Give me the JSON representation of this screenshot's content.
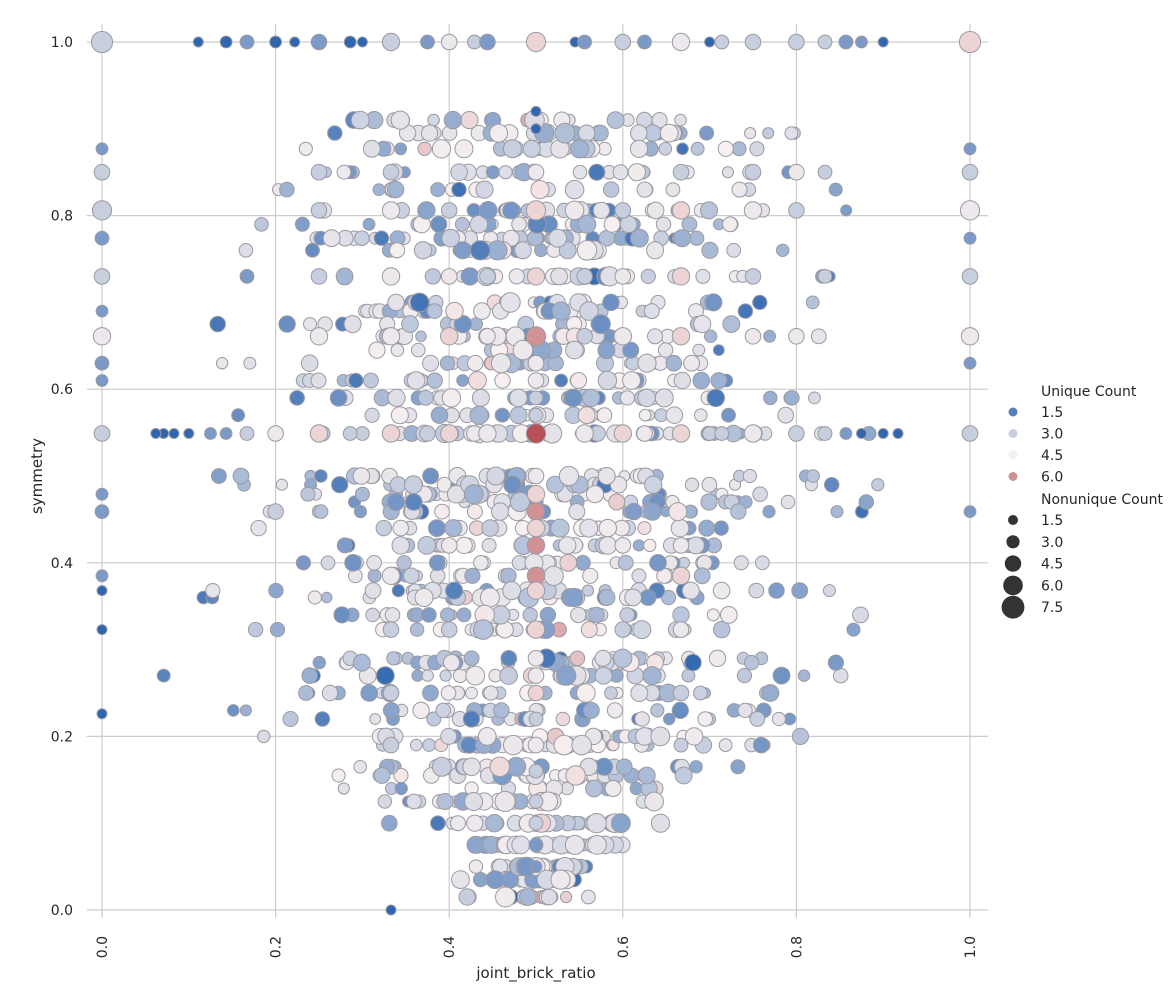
{
  "chart_data": {
    "type": "scatter",
    "xlabel": "joint_brick_ratio",
    "ylabel": "symmetry",
    "xlim": [
      0.0,
      1.0
    ],
    "ylim": [
      0.0,
      1.0
    ],
    "x_ticks": [
      0.0,
      0.2,
      0.4,
      0.6,
      0.8,
      1.0
    ],
    "x_tick_labels": [
      "0.0",
      "0.2",
      "0.4",
      "0.6",
      "0.8",
      "1.0"
    ],
    "y_ticks": [
      0.0,
      0.2,
      0.4,
      0.6,
      0.8,
      1.0
    ],
    "y_tick_labels": [
      "0.0",
      "0.2",
      "0.4",
      "0.6",
      "0.8",
      "1.0"
    ],
    "grid": true,
    "legend_position": "right",
    "hue": {
      "title": "Unique Count",
      "entries": [
        {
          "label": "1.5",
          "value": 1.5
        },
        {
          "label": "3.0",
          "value": 3.0
        },
        {
          "label": "4.5",
          "value": 4.5
        },
        {
          "label": "6.0",
          "value": 6.0
        }
      ],
      "palette": {
        "low": "#2f66b0",
        "mid": "#dcdde6",
        "high": "#a83038"
      },
      "range": [
        1,
        7.5
      ]
    },
    "size": {
      "title": "Nonunique Count",
      "entries": [
        {
          "label": "1.5",
          "value": 1.5
        },
        {
          "label": "3.0",
          "value": 3.0
        },
        {
          "label": "4.5",
          "value": 4.5
        },
        {
          "label": "6.0",
          "value": 6.0
        },
        {
          "label": "7.5",
          "value": 7.5
        }
      ],
      "range": [
        1,
        8
      ]
    },
    "points": [
      [
        0.0,
        1.0,
        3,
        7
      ],
      [
        0.111,
        1.0,
        1,
        1
      ],
      [
        0.143,
        1.0,
        1,
        2
      ],
      [
        0.167,
        1.0,
        2,
        3
      ],
      [
        0.2,
        1.0,
        1,
        2
      ],
      [
        0.222,
        1.0,
        1,
        1
      ],
      [
        0.25,
        1.0,
        2,
        4
      ],
      [
        0.286,
        1.0,
        1,
        2
      ],
      [
        0.3,
        1.0,
        1,
        1
      ],
      [
        0.333,
        1.0,
        3,
        5
      ],
      [
        0.375,
        1.0,
        2,
        3
      ],
      [
        0.4,
        1.0,
        4,
        4
      ],
      [
        0.429,
        1.0,
        3,
        3
      ],
      [
        0.444,
        1.0,
        2,
        4
      ],
      [
        0.5,
        1.0,
        5,
        6
      ],
      [
        0.545,
        1.0,
        1,
        1
      ],
      [
        0.556,
        1.0,
        2,
        3
      ],
      [
        0.6,
        1.0,
        3,
        4
      ],
      [
        0.625,
        1.0,
        2,
        3
      ],
      [
        0.667,
        1.0,
        4,
        5
      ],
      [
        0.7,
        1.0,
        1,
        1
      ],
      [
        0.714,
        1.0,
        3,
        3
      ],
      [
        0.75,
        1.0,
        3,
        4
      ],
      [
        0.8,
        1.0,
        3,
        4
      ],
      [
        0.833,
        1.0,
        3,
        3
      ],
      [
        0.857,
        1.0,
        2,
        3
      ],
      [
        0.875,
        1.0,
        2,
        2
      ],
      [
        0.9,
        1.0,
        1,
        1
      ],
      [
        1.0,
        1.0,
        5,
        7
      ],
      [
        0.0,
        0.877,
        2,
        2
      ],
      [
        0.0,
        0.85,
        3,
        4
      ],
      [
        0.0,
        0.806,
        3,
        6
      ],
      [
        0.0,
        0.774,
        2,
        3
      ],
      [
        0.0,
        0.73,
        3,
        4
      ],
      [
        0.0,
        0.69,
        2,
        2
      ],
      [
        0.0,
        0.661,
        4,
        5
      ],
      [
        0.0,
        0.63,
        2,
        3
      ],
      [
        0.0,
        0.61,
        2,
        2
      ],
      [
        0.0,
        0.549,
        3,
        4
      ],
      [
        0.0,
        0.479,
        2,
        2
      ],
      [
        0.0,
        0.459,
        2,
        3
      ],
      [
        0.0,
        0.385,
        2,
        2
      ],
      [
        0.0,
        0.368,
        1,
        1
      ],
      [
        0.0,
        0.323,
        1,
        1
      ],
      [
        0.0,
        0.226,
        1,
        1
      ],
      [
        1.0,
        0.877,
        2,
        2
      ],
      [
        1.0,
        0.85,
        3,
        4
      ],
      [
        1.0,
        0.806,
        4,
        6
      ],
      [
        1.0,
        0.774,
        2,
        2
      ],
      [
        1.0,
        0.73,
        3,
        4
      ],
      [
        1.0,
        0.661,
        4,
        5
      ],
      [
        1.0,
        0.63,
        2,
        2
      ],
      [
        1.0,
        0.549,
        3,
        4
      ],
      [
        1.0,
        0.459,
        2,
        2
      ],
      [
        0.5,
        0.549,
        7,
        6
      ],
      [
        0.5,
        0.661,
        6,
        6
      ],
      [
        0.5,
        0.73,
        5,
        5
      ],
      [
        0.5,
        0.806,
        5,
        6
      ],
      [
        0.5,
        0.85,
        4,
        4
      ],
      [
        0.5,
        0.459,
        6,
        5
      ],
      [
        0.5,
        0.42,
        6,
        5
      ],
      [
        0.5,
        0.385,
        6,
        5
      ],
      [
        0.5,
        0.368,
        5,
        5
      ],
      [
        0.5,
        0.323,
        5,
        5
      ],
      [
        0.5,
        0.25,
        5,
        4
      ],
      [
        0.5,
        0.19,
        4,
        4
      ],
      [
        0.5,
        0.27,
        4,
        4
      ],
      [
        0.5,
        0.29,
        4,
        4
      ],
      [
        0.5,
        0.44,
        5,
        5
      ],
      [
        0.5,
        0.479,
        5,
        5
      ],
      [
        0.5,
        0.5,
        4,
        4
      ],
      [
        0.5,
        0.61,
        4,
        4
      ],
      [
        0.5,
        0.63,
        4,
        4
      ],
      [
        0.5,
        0.57,
        3,
        3
      ],
      [
        0.5,
        0.59,
        3,
        3
      ],
      [
        0.5,
        0.22,
        3,
        3
      ],
      [
        0.5,
        0.16,
        3,
        3
      ],
      [
        0.5,
        0.125,
        3,
        3
      ],
      [
        0.5,
        0.1,
        3,
        3
      ],
      [
        0.5,
        0.075,
        2,
        3
      ],
      [
        0.5,
        0.05,
        2,
        2
      ],
      [
        0.5,
        0.9,
        1,
        1
      ],
      [
        0.5,
        0.92,
        1,
        1
      ],
      [
        0.333,
        0.549,
        5,
        5
      ],
      [
        0.333,
        0.661,
        4,
        5
      ],
      [
        0.333,
        0.73,
        4,
        5
      ],
      [
        0.333,
        0.806,
        4,
        5
      ],
      [
        0.333,
        0.85,
        3,
        4
      ],
      [
        0.333,
        0.385,
        4,
        5
      ],
      [
        0.333,
        0.323,
        3,
        4
      ],
      [
        0.333,
        0.25,
        3,
        4
      ],
      [
        0.333,
        0.19,
        3,
        4
      ],
      [
        0.333,
        0.0,
        1,
        1
      ],
      [
        0.667,
        0.549,
        5,
        5
      ],
      [
        0.667,
        0.661,
        5,
        5
      ],
      [
        0.667,
        0.73,
        5,
        5
      ],
      [
        0.667,
        0.806,
        5,
        5
      ],
      [
        0.667,
        0.85,
        3,
        4
      ],
      [
        0.667,
        0.42,
        4,
        4
      ],
      [
        0.667,
        0.385,
        5,
        5
      ],
      [
        0.667,
        0.323,
        4,
        4
      ],
      [
        0.667,
        0.25,
        3,
        4
      ],
      [
        0.667,
        0.19,
        3,
        3
      ],
      [
        0.4,
        0.549,
        5,
        5
      ],
      [
        0.4,
        0.661,
        5,
        5
      ],
      [
        0.4,
        0.73,
        4,
        4
      ],
      [
        0.4,
        0.806,
        3,
        4
      ],
      [
        0.4,
        0.42,
        4,
        4
      ],
      [
        0.4,
        0.323,
        3,
        4
      ],
      [
        0.6,
        0.549,
        5,
        5
      ],
      [
        0.6,
        0.661,
        4,
        5
      ],
      [
        0.6,
        0.73,
        4,
        4
      ],
      [
        0.6,
        0.806,
        3,
        4
      ],
      [
        0.6,
        0.42,
        4,
        4
      ],
      [
        0.6,
        0.323,
        3,
        4
      ],
      [
        0.25,
        0.549,
        5,
        5
      ],
      [
        0.25,
        0.661,
        4,
        5
      ],
      [
        0.25,
        0.73,
        3,
        4
      ],
      [
        0.25,
        0.806,
        3,
        4
      ],
      [
        0.25,
        0.85,
        3,
        4
      ],
      [
        0.75,
        0.549,
        4,
        5
      ],
      [
        0.75,
        0.661,
        4,
        4
      ],
      [
        0.75,
        0.73,
        3,
        4
      ],
      [
        0.75,
        0.806,
        4,
        5
      ],
      [
        0.75,
        0.85,
        3,
        4
      ],
      [
        0.2,
        0.549,
        4,
        4
      ],
      [
        0.2,
        0.459,
        3,
        4
      ],
      [
        0.8,
        0.549,
        3,
        4
      ],
      [
        0.8,
        0.661,
        4,
        4
      ],
      [
        0.8,
        0.85,
        4,
        4
      ],
      [
        0.8,
        0.806,
        3,
        4
      ],
      [
        0.167,
        0.549,
        3,
        3
      ],
      [
        0.167,
        0.73,
        2,
        3
      ],
      [
        0.833,
        0.549,
        3,
        3
      ],
      [
        0.833,
        0.73,
        3,
        3
      ],
      [
        0.833,
        0.85,
        3,
        3
      ],
      [
        0.444,
        0.549,
        4,
        5
      ],
      [
        0.444,
        0.661,
        4,
        4
      ],
      [
        0.444,
        0.73,
        3,
        4
      ],
      [
        0.556,
        0.549,
        4,
        5
      ],
      [
        0.556,
        0.661,
        3,
        4
      ],
      [
        0.556,
        0.73,
        3,
        4
      ],
      [
        0.429,
        0.549,
        4,
        4
      ],
      [
        0.571,
        0.549,
        3,
        4
      ],
      [
        0.375,
        0.549,
        3,
        4
      ],
      [
        0.625,
        0.549,
        4,
        4
      ],
      [
        0.3,
        0.549,
        3,
        3
      ],
      [
        0.7,
        0.549,
        3,
        3
      ],
      [
        0.286,
        0.549,
        3,
        3
      ],
      [
        0.714,
        0.549,
        3,
        3
      ],
      [
        0.143,
        0.549,
        2,
        2
      ],
      [
        0.857,
        0.549,
        2,
        2
      ],
      [
        0.125,
        0.549,
        2,
        2
      ],
      [
        0.875,
        0.549,
        1,
        1
      ],
      [
        0.1,
        0.549,
        1,
        1
      ],
      [
        0.9,
        0.549,
        1,
        1
      ],
      [
        0.083,
        0.549,
        1,
        1
      ],
      [
        0.917,
        0.549,
        1,
        1
      ],
      [
        0.071,
        0.549,
        1,
        1
      ],
      [
        0.062,
        0.549,
        1,
        1
      ]
    ],
    "cloud": {
      "seed": 7,
      "count": 1500,
      "y_rows": [
        0.015,
        0.035,
        0.05,
        0.075,
        0.1,
        0.125,
        0.14,
        0.155,
        0.165,
        0.19,
        0.2,
        0.22,
        0.23,
        0.25,
        0.27,
        0.285,
        0.29,
        0.323,
        0.34,
        0.36,
        0.368,
        0.385,
        0.4,
        0.42,
        0.44,
        0.459,
        0.47,
        0.479,
        0.49,
        0.5,
        0.549,
        0.57,
        0.59,
        0.61,
        0.63,
        0.645,
        0.661,
        0.675,
        0.69,
        0.7,
        0.73,
        0.76,
        0.774,
        0.79,
        0.806,
        0.83,
        0.85,
        0.877,
        0.895,
        0.91
      ]
    }
  }
}
